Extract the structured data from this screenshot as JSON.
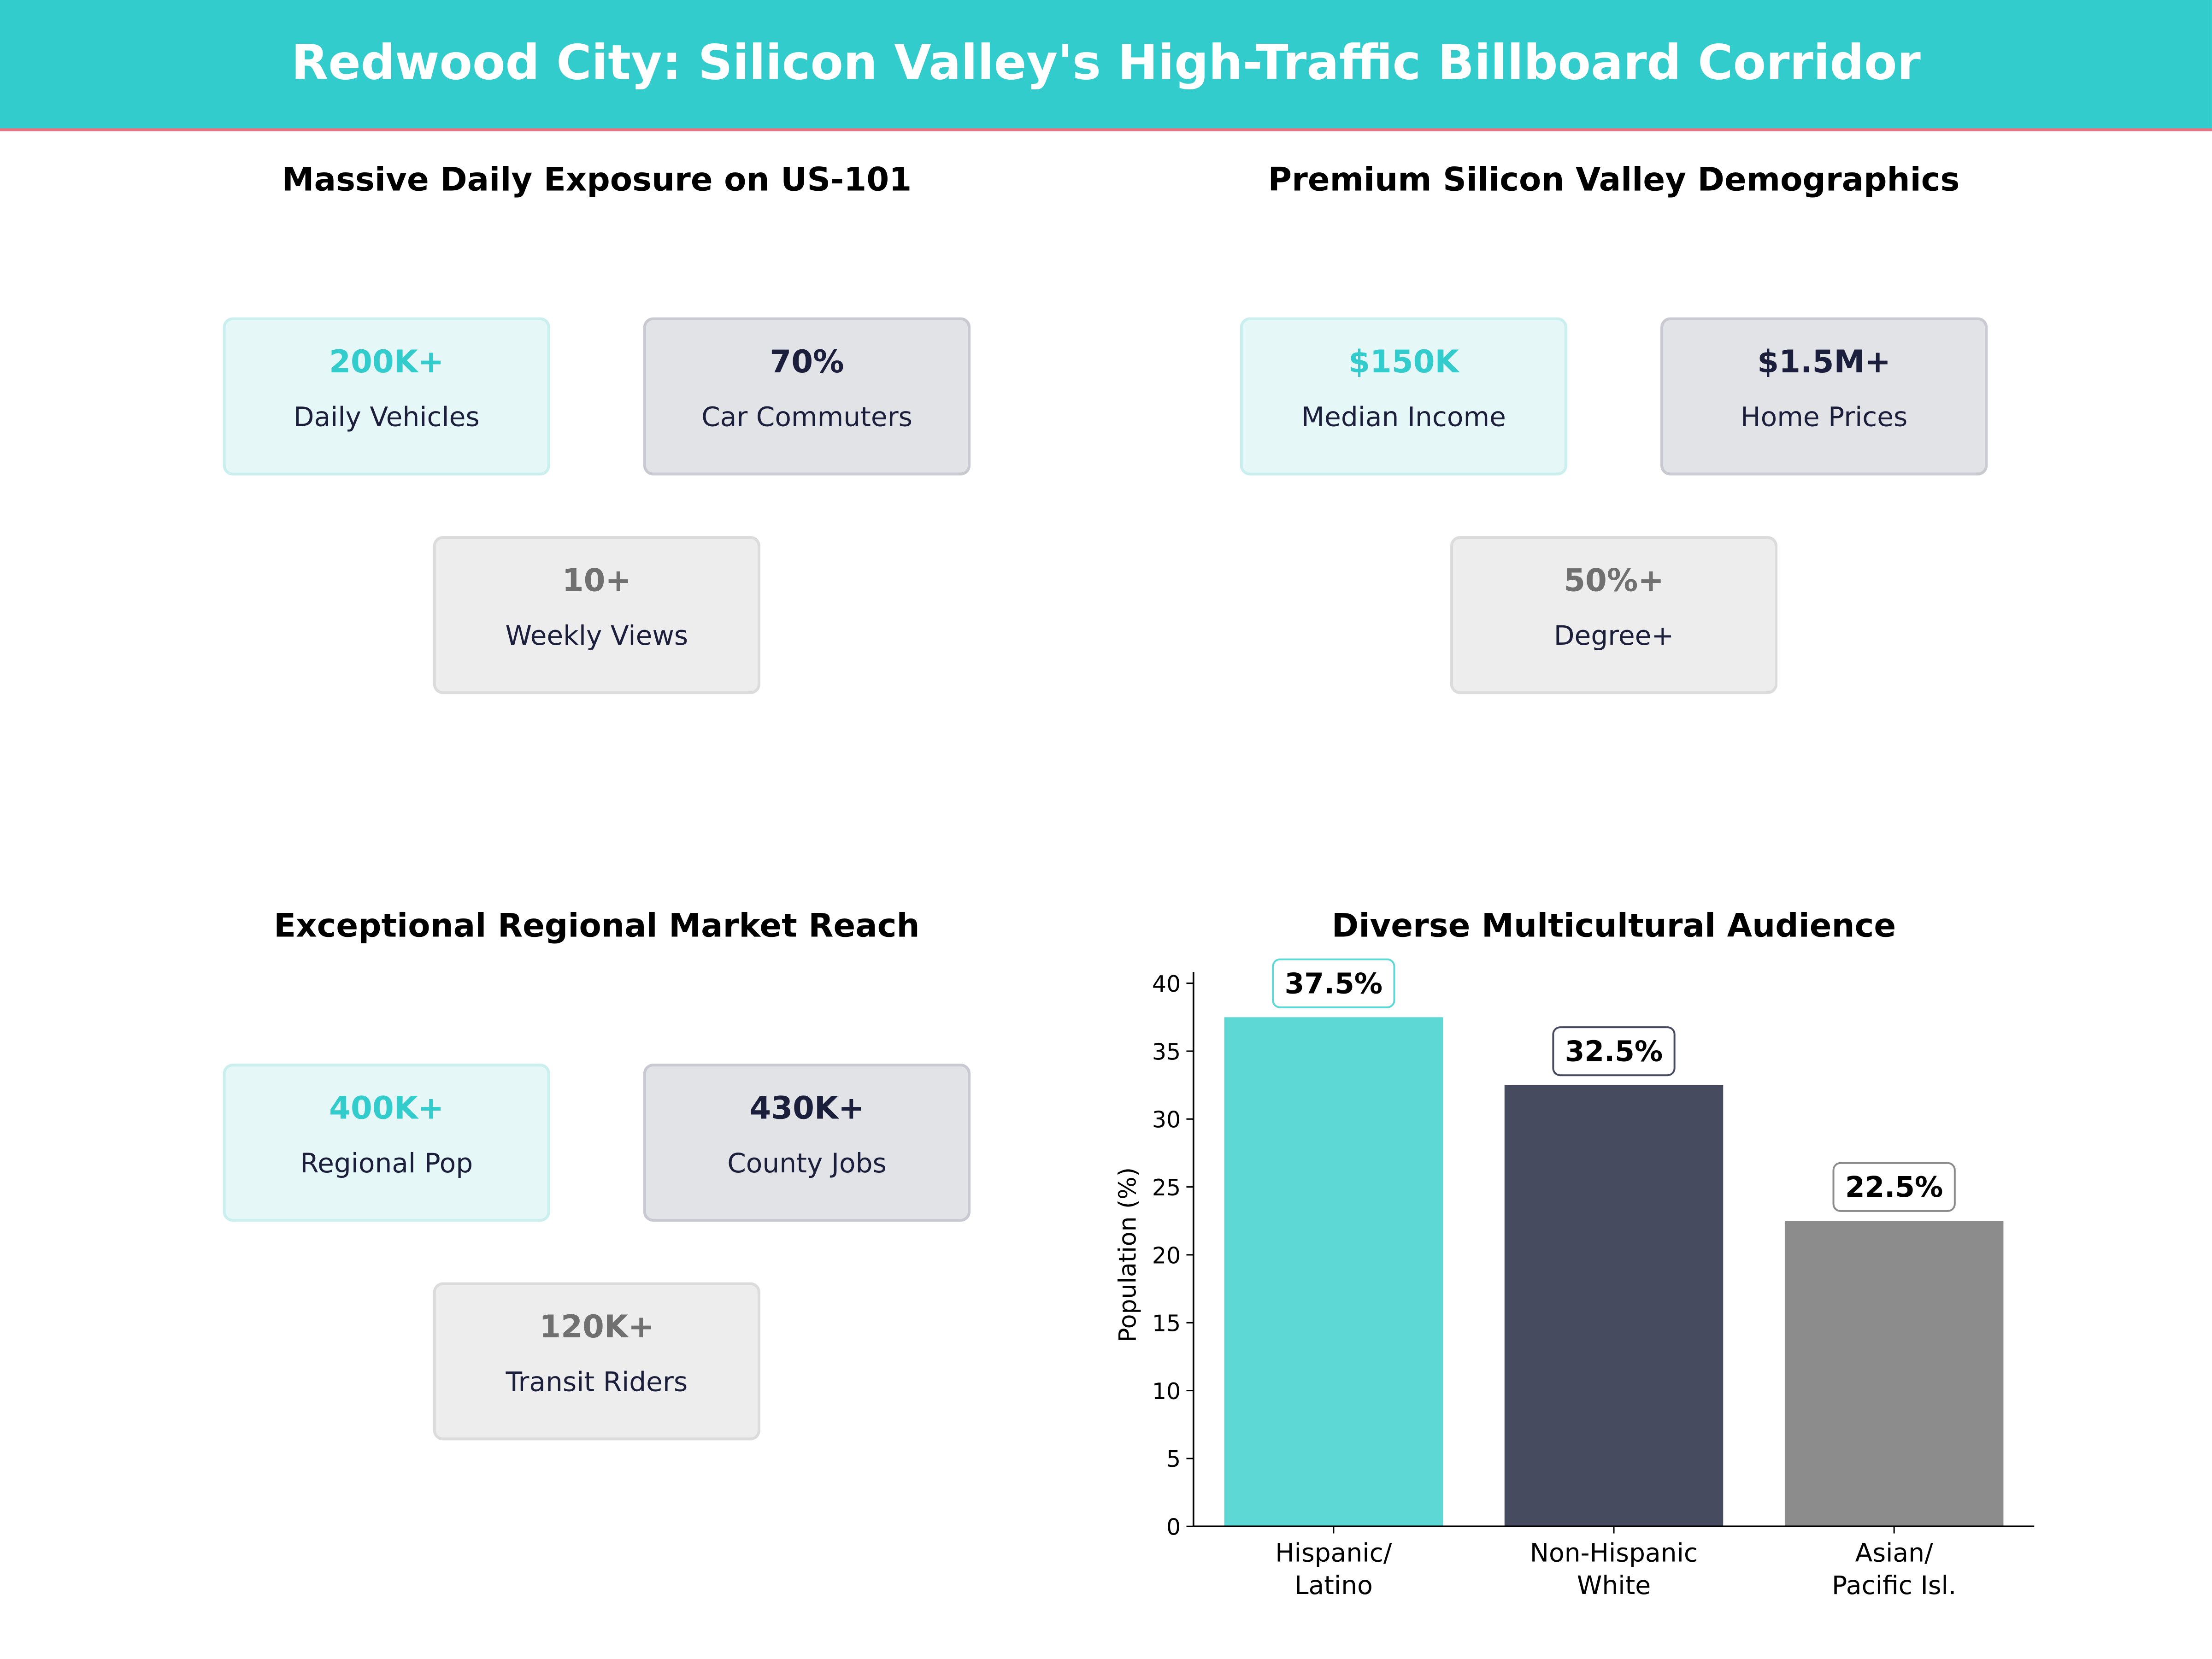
{
  "header": {
    "title": "Redwood City: Silicon Valley's High-Traffic Billboard Corridor",
    "bg_color": "#33cccc",
    "accent_line_color": "#f07080"
  },
  "panels": [
    {
      "title": "Massive Daily Exposure on US-101",
      "cards": [
        {
          "value": "200K+",
          "label": "Daily Vehicles",
          "style": "teal"
        },
        {
          "value": "70%",
          "label": "Car Commuters",
          "style": "navy"
        },
        {
          "value": "10+",
          "label": "Weekly Views",
          "style": "gray"
        }
      ]
    },
    {
      "title": "Premium Silicon Valley Demographics",
      "cards": [
        {
          "value": "$150K",
          "label": "Median Income",
          "style": "teal"
        },
        {
          "value": "$1.5M+",
          "label": "Home Prices",
          "style": "navy"
        },
        {
          "value": "50%+",
          "label": "Degree+",
          "style": "gray"
        }
      ]
    },
    {
      "title": "Exceptional Regional Market Reach",
      "cards": [
        {
          "value": "400K+",
          "label": "Regional Pop",
          "style": "teal"
        },
        {
          "value": "430K+",
          "label": "County Jobs",
          "style": "navy"
        },
        {
          "value": "120K+",
          "label": "Transit Riders",
          "style": "gray"
        }
      ]
    }
  ],
  "chart_data": {
    "type": "bar",
    "title": "Diverse Multicultural Audience",
    "categories": [
      "Hispanic/\nLatino",
      "Non-Hispanic\nWhite",
      "Asian/\nPacific Isl."
    ],
    "values": [
      37.5,
      32.5,
      22.5
    ],
    "data_labels": [
      "37.5%",
      "32.5%",
      "22.5%"
    ],
    "colors": [
      "#5dd8d5",
      "#464b60",
      "#8c8c8c"
    ],
    "label_border_colors": [
      "#5dd8d5",
      "#464b60",
      "#8c8c8c"
    ],
    "xlabel": "",
    "ylabel": "Population (%)",
    "ylim": [
      0,
      40
    ],
    "yticks": [
      0,
      5,
      10,
      15,
      20,
      25,
      30,
      35,
      40
    ],
    "grid": false
  }
}
